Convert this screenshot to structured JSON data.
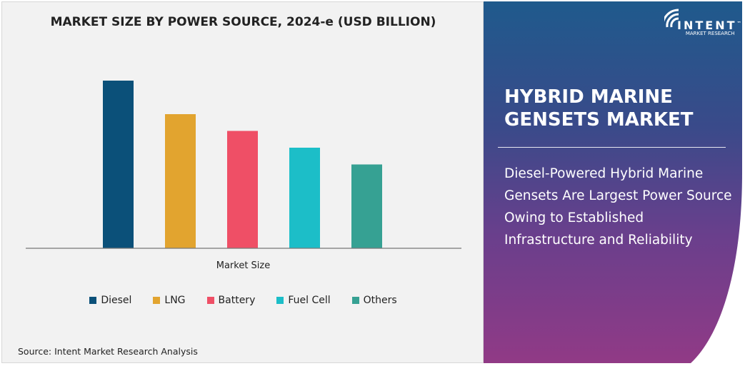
{
  "chart_data": {
    "type": "bar",
    "title": "MARKET SIZE BY POWER SOURCE, 2024-e (USD BILLION)",
    "xlabel": "Market Size",
    "ylabel": "",
    "categories": [
      "Market Size"
    ],
    "series": [
      {
        "name": "Diesel",
        "values": [
          100
        ],
        "color": "#0b5079"
      },
      {
        "name": "LNG",
        "values": [
          80
        ],
        "color": "#e2a42f"
      },
      {
        "name": "Battery",
        "values": [
          70
        ],
        "color": "#ef4f66"
      },
      {
        "name": "Fuel Cell",
        "values": [
          60
        ],
        "color": "#1cbec8"
      },
      {
        "name": "Others",
        "values": [
          50
        ],
        "color": "#36a193"
      }
    ],
    "ylim": [
      0,
      100
    ],
    "grid": false,
    "legend": "bottom",
    "values_note_unit": "relative"
  },
  "source": "Source: Intent Market Research Analysis",
  "logo": {
    "brand": "INTENT",
    "tm": "™",
    "sub": "MARKET RESEARCH"
  },
  "panel": {
    "title_line1": "HYBRID MARINE",
    "title_line2": "GENSETS MARKET",
    "description": "Diesel-Powered Hybrid Marine Gensets Are Largest Power Source Owing to Established Infrastructure and Reliability"
  }
}
